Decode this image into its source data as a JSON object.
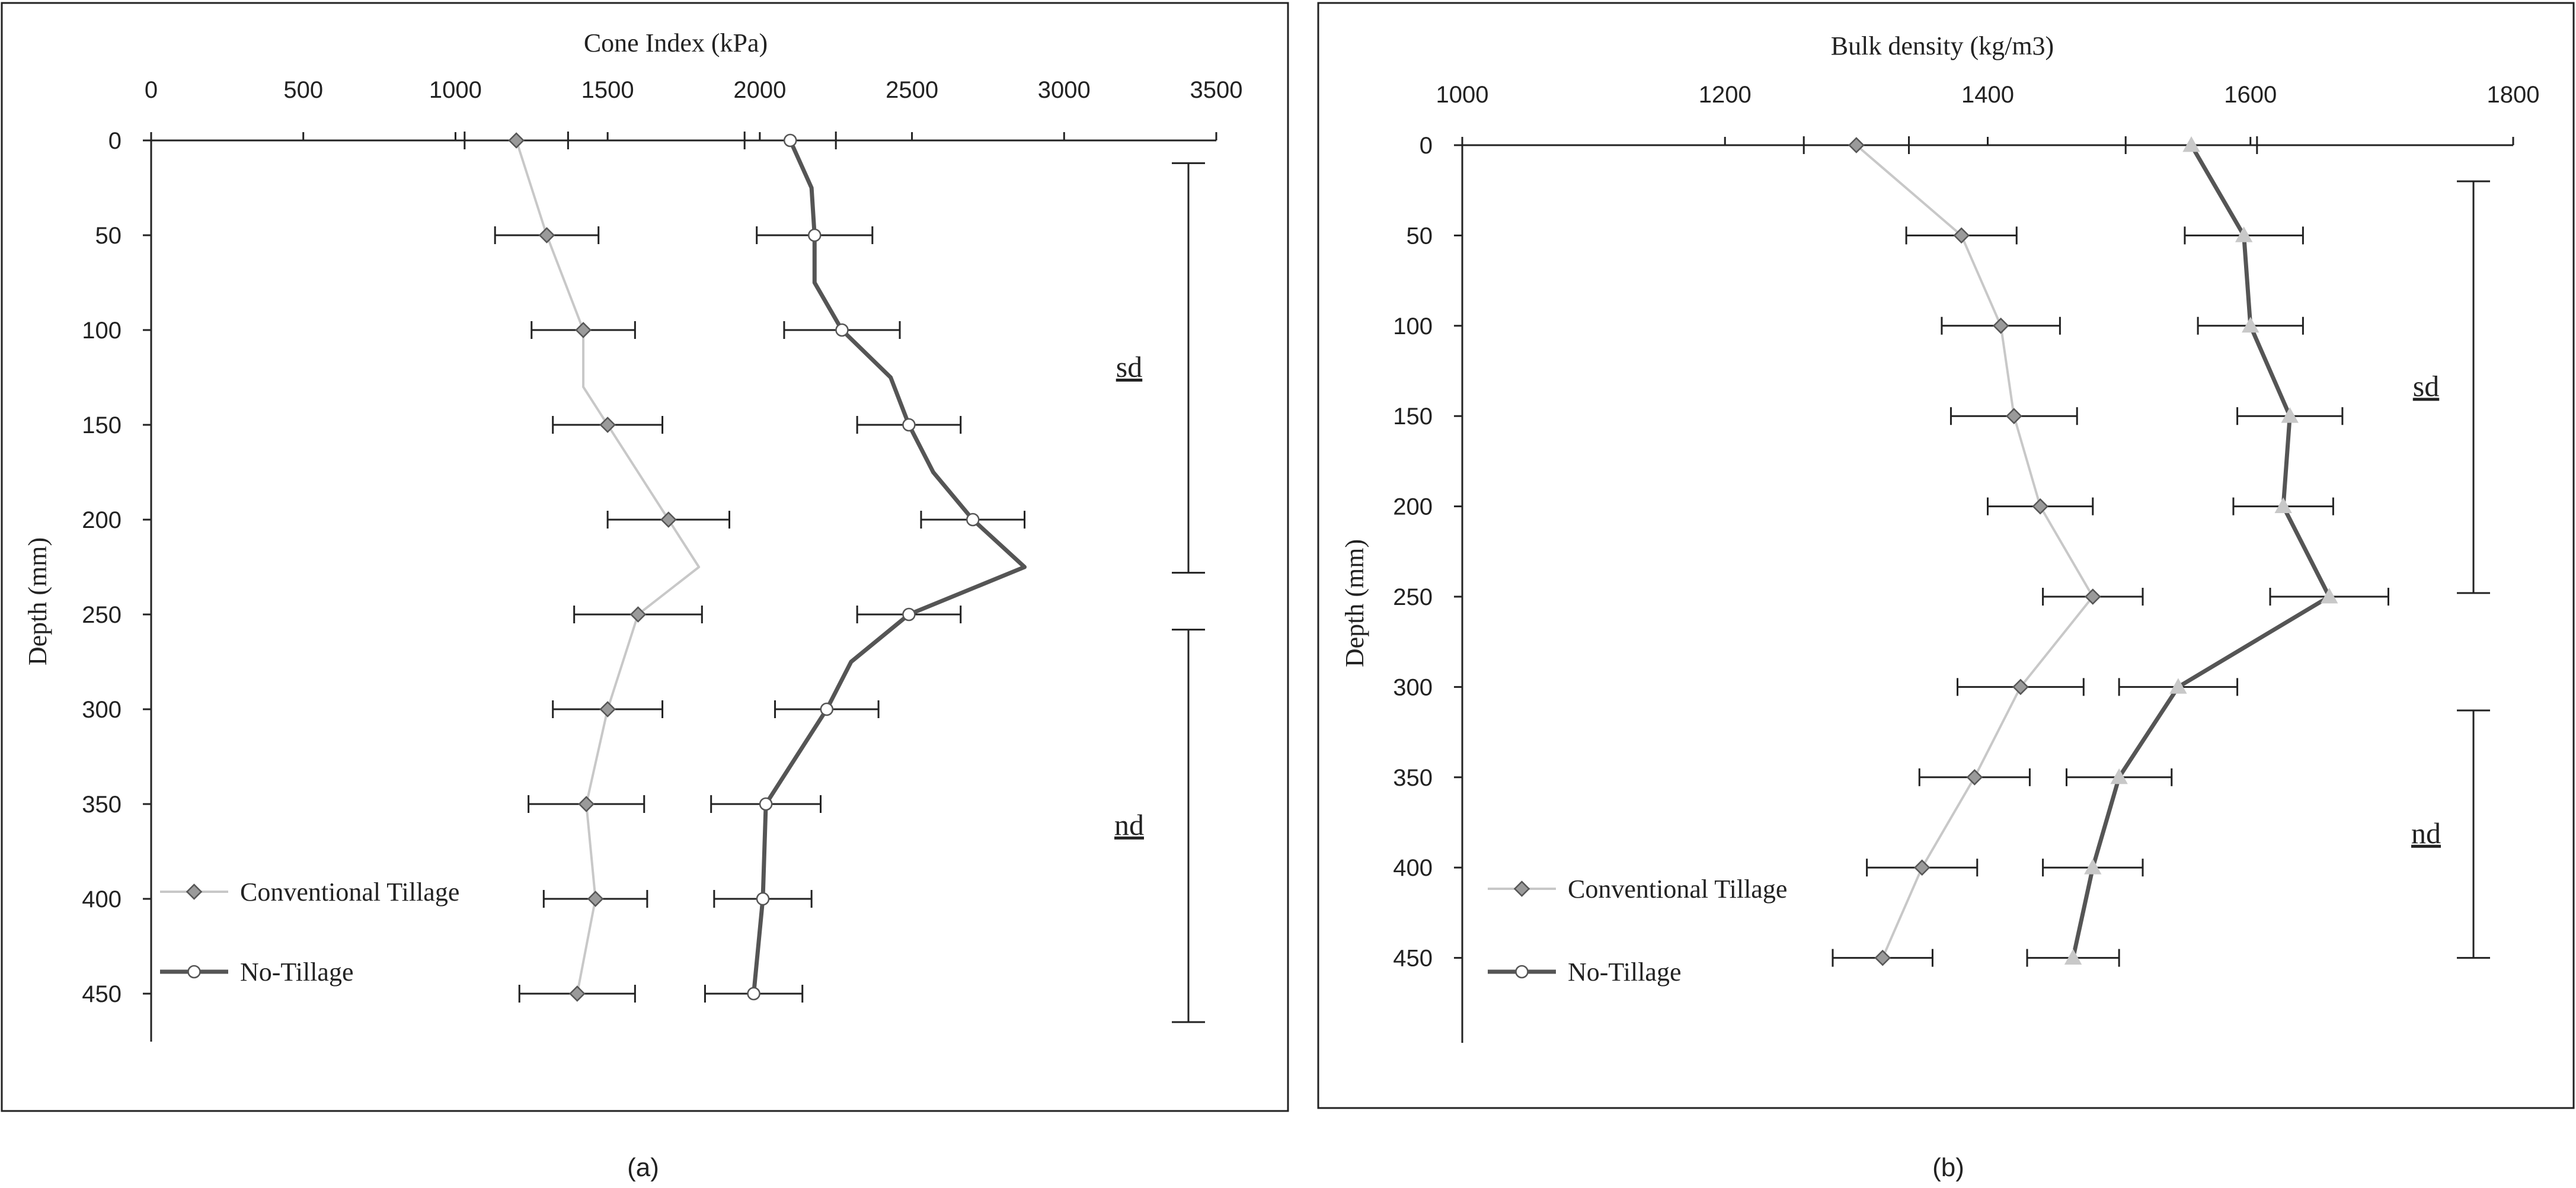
{
  "chart_data": [
    {
      "type": "line",
      "panel_label": "(a)",
      "title": "",
      "xlabel": "Cone Index (kPa)",
      "ylabel": "Depth (mm)",
      "xlim": [
        0,
        3500
      ],
      "ylim": [
        0,
        480
      ],
      "x_ticks": [
        "0",
        "500",
        "1000",
        "1500",
        "2000",
        "2500",
        "3000",
        "3500"
      ],
      "y_ticks": [
        "0",
        "50",
        "100",
        "150",
        "200",
        "250",
        "300",
        "350",
        "400",
        "450"
      ],
      "legend_position": "bottom-left",
      "series": [
        {
          "name": "Conventional Tillage",
          "color": "#c8c8c8",
          "marker": "diamond",
          "points": [
            {
              "depth": 0,
              "value": 1200,
              "err": 170
            },
            {
              "depth": 50,
              "value": 1300,
              "err": 170
            },
            {
              "depth": 100,
              "value": 1420,
              "err": 170
            },
            {
              "depth": 150,
              "value": 1500,
              "err": 180
            },
            {
              "depth": 200,
              "value": 1700,
              "err": 200
            },
            {
              "depth": 250,
              "value": 1600,
              "err": 210
            },
            {
              "depth": 300,
              "value": 1500,
              "err": 180
            },
            {
              "depth": 350,
              "value": 1430,
              "err": 190
            },
            {
              "depth": 400,
              "value": 1460,
              "err": 170
            },
            {
              "depth": 450,
              "value": 1400,
              "err": 190
            }
          ],
          "line": [
            [
              0,
              1200
            ],
            [
              50,
              1300
            ],
            [
              100,
              1420
            ],
            [
              130,
              1420
            ],
            [
              150,
              1500
            ],
            [
              200,
              1700
            ],
            [
              225,
              1800
            ],
            [
              250,
              1600
            ],
            [
              300,
              1500
            ],
            [
              350,
              1430
            ],
            [
              400,
              1460
            ],
            [
              450,
              1400
            ]
          ]
        },
        {
          "name": "No-Tillage",
          "color": "#555555",
          "marker": "circle",
          "points": [
            {
              "depth": 0,
              "value": 2100,
              "err": 150
            },
            {
              "depth": 50,
              "value": 2180,
              "err": 190
            },
            {
              "depth": 100,
              "value": 2270,
              "err": 190
            },
            {
              "depth": 150,
              "value": 2490,
              "err": 170
            },
            {
              "depth": 200,
              "value": 2700,
              "err": 170
            },
            {
              "depth": 250,
              "value": 2490,
              "err": 170
            },
            {
              "depth": 300,
              "value": 2220,
              "err": 170
            },
            {
              "depth": 350,
              "value": 2020,
              "err": 180
            },
            {
              "depth": 400,
              "value": 2010,
              "err": 160
            },
            {
              "depth": 450,
              "value": 1980,
              "err": 160
            }
          ],
          "line": [
            [
              0,
              2100
            ],
            [
              25,
              2170
            ],
            [
              50,
              2180
            ],
            [
              75,
              2180
            ],
            [
              100,
              2270
            ],
            [
              125,
              2430
            ],
            [
              150,
              2490
            ],
            [
              175,
              2570
            ],
            [
              200,
              2700
            ],
            [
              225,
              2870
            ],
            [
              250,
              2490
            ],
            [
              275,
              2300
            ],
            [
              300,
              2220
            ],
            [
              350,
              2020
            ],
            [
              400,
              2010
            ],
            [
              450,
              1980
            ]
          ]
        }
      ],
      "zones": [
        {
          "label": "sd",
          "from_depth": 12,
          "to_depth": 228
        },
        {
          "label": "nd",
          "from_depth": 258,
          "to_depth": 465
        }
      ]
    },
    {
      "type": "line",
      "panel_label": "(b)",
      "title": "",
      "xlabel": "Bulk density (kg/m3)",
      "ylabel": "Depth (mm)",
      "xlim": [
        1000,
        1800
      ],
      "ylim": [
        0,
        495
      ],
      "x_ticks": [
        "1000",
        "1200",
        "1400",
        "1600",
        "1800"
      ],
      "y_ticks": [
        "0",
        "50",
        "100",
        "150",
        "200",
        "250",
        "300",
        "350",
        "400",
        "450"
      ],
      "legend_position": "bottom-left",
      "series": [
        {
          "name": "Conventional Tillage",
          "color": "#c8c8c8",
          "marker": "diamond",
          "points": [
            {
              "depth": 0,
              "value": 1300,
              "err": 40
            },
            {
              "depth": 50,
              "value": 1380,
              "err": 42
            },
            {
              "depth": 100,
              "value": 1410,
              "err": 45
            },
            {
              "depth": 150,
              "value": 1420,
              "err": 48
            },
            {
              "depth": 200,
              "value": 1440,
              "err": 40
            },
            {
              "depth": 250,
              "value": 1480,
              "err": 38
            },
            {
              "depth": 300,
              "value": 1425,
              "err": 48
            },
            {
              "depth": 350,
              "value": 1390,
              "err": 42
            },
            {
              "depth": 400,
              "value": 1350,
              "err": 42
            },
            {
              "depth": 450,
              "value": 1320,
              "err": 38
            }
          ],
          "line": [
            [
              0,
              1300
            ],
            [
              50,
              1380
            ],
            [
              100,
              1410
            ],
            [
              150,
              1420
            ],
            [
              200,
              1440
            ],
            [
              250,
              1480
            ],
            [
              300,
              1425
            ],
            [
              350,
              1390
            ],
            [
              400,
              1350
            ],
            [
              450,
              1320
            ]
          ]
        },
        {
          "name": "No-Tillage",
          "color": "#555555",
          "marker": "triangle",
          "points": [
            {
              "depth": 0,
              "value": 1555,
              "err": 50
            },
            {
              "depth": 50,
              "value": 1595,
              "err": 45
            },
            {
              "depth": 100,
              "value": 1600,
              "err": 40
            },
            {
              "depth": 150,
              "value": 1630,
              "err": 40
            },
            {
              "depth": 200,
              "value": 1625,
              "err": 38
            },
            {
              "depth": 250,
              "value": 1660,
              "err": 45
            },
            {
              "depth": 300,
              "value": 1545,
              "err": 45
            },
            {
              "depth": 350,
              "value": 1500,
              "err": 40
            },
            {
              "depth": 400,
              "value": 1480,
              "err": 38
            },
            {
              "depth": 450,
              "value": 1465,
              "err": 35
            }
          ],
          "line": [
            [
              0,
              1555
            ],
            [
              50,
              1595
            ],
            [
              100,
              1600
            ],
            [
              150,
              1630
            ],
            [
              200,
              1625
            ],
            [
              250,
              1660
            ],
            [
              300,
              1545
            ],
            [
              350,
              1500
            ],
            [
              400,
              1480
            ],
            [
              450,
              1465
            ]
          ]
        }
      ],
      "zones": [
        {
          "label": "sd",
          "from_depth": 20,
          "to_depth": 248
        },
        {
          "label": "nd",
          "from_depth": 313,
          "to_depth": 450
        }
      ]
    }
  ]
}
